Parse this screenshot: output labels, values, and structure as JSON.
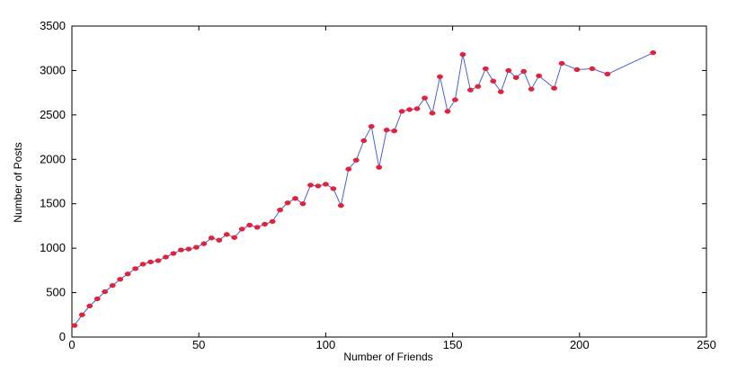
{
  "chart_data": {
    "type": "line",
    "title": "",
    "xlabel": "Number of Friends",
    "ylabel": "Number of Posts",
    "xlim": [
      0,
      250
    ],
    "ylim": [
      0,
      3500
    ],
    "xticks": [
      0,
      50,
      100,
      150,
      200,
      250
    ],
    "yticks": [
      0,
      500,
      1000,
      1500,
      2000,
      2500,
      3000,
      3500
    ],
    "grid": false,
    "legend": "none",
    "line_color": "#4a5fd8",
    "marker_color": "#e0233a",
    "series": [
      {
        "x": [
          1,
          4,
          7,
          10,
          13,
          16,
          19,
          22,
          25,
          28,
          31,
          34,
          37,
          40,
          43,
          46,
          49,
          52,
          55,
          58,
          61,
          64,
          67,
          70,
          73,
          76,
          79,
          82,
          85,
          88,
          91,
          94,
          97,
          100,
          103,
          106,
          109,
          112,
          115,
          118,
          121,
          124,
          127,
          130,
          133,
          136,
          139,
          142,
          145,
          148,
          151,
          154,
          157,
          160,
          163,
          166,
          169,
          172,
          175,
          178,
          181,
          184,
          190,
          193,
          199,
          205,
          211,
          229
        ],
        "y": [
          130,
          250,
          350,
          430,
          510,
          580,
          650,
          710,
          770,
          820,
          845,
          860,
          900,
          940,
          980,
          990,
          1010,
          1050,
          1115,
          1090,
          1155,
          1120,
          1215,
          1260,
          1235,
          1270,
          1300,
          1430,
          1510,
          1560,
          1500,
          1710,
          1700,
          1720,
          1670,
          1480,
          1890,
          1990,
          2210,
          2370,
          1910,
          2330,
          2320,
          2540,
          2560,
          2570,
          2690,
          2520,
          2930,
          2540,
          2670,
          3180,
          2780,
          2820,
          3020,
          2880,
          2760,
          3000,
          2920,
          2990,
          2790,
          2940,
          2800,
          3080,
          3010,
          3020,
          2960,
          3200
        ]
      }
    ]
  }
}
